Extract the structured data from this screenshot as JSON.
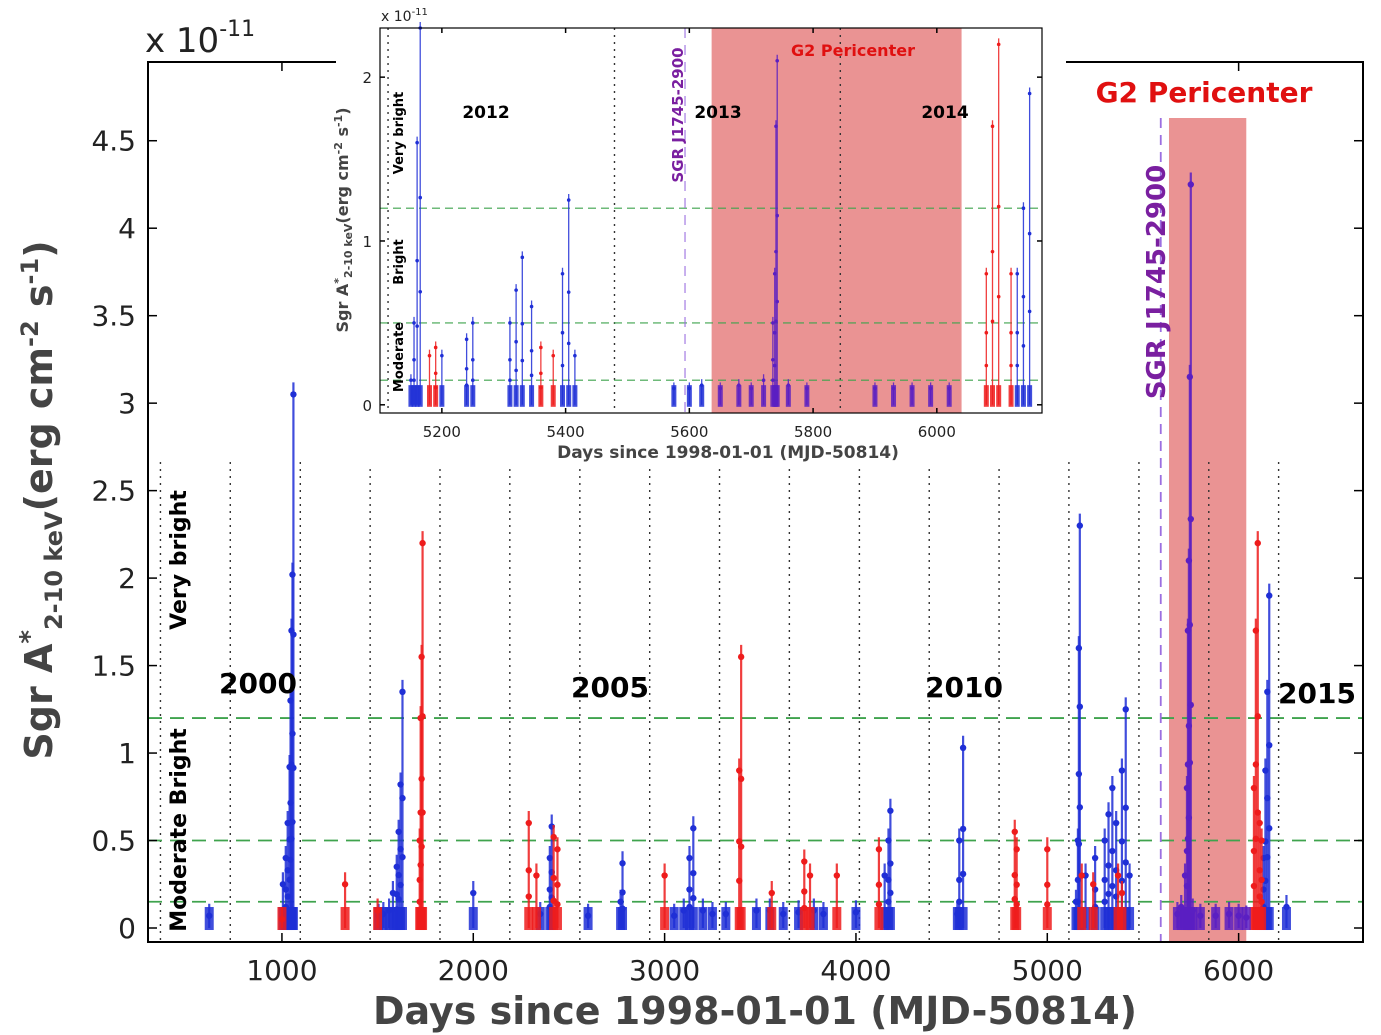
{
  "chart_data": [
    {
      "type": "scatter",
      "id": "main",
      "xlabel": "Days since 1998-01-01 (MJD-50814)",
      "ylabel_main": "Sgr A",
      "ylabel_sup": "*",
      "ylabel_sub": "2-10 keV",
      "ylabel_unit": "(erg cm",
      "ylabel_exp1": "-2",
      "ylabel_mid": " s",
      "ylabel_exp2": "-1",
      "ylabel_close": ")",
      "scale_label": "x 10",
      "scale_exp": "-11",
      "xlim": [
        300,
        6650
      ],
      "ylim": [
        -0.08,
        4.95
      ],
      "xticks": [
        1000,
        2000,
        3000,
        4000,
        5000,
        6000
      ],
      "xtick_labels": [
        "1000",
        "2000",
        "3000",
        "4000",
        "5000",
        "6000"
      ],
      "yticks": [
        0,
        0.5,
        1,
        1.5,
        2,
        2.5,
        3,
        3.5,
        4,
        4.5
      ],
      "ytick_labels": [
        "0",
        "0.5",
        "1",
        "1.5",
        "2",
        "2.5",
        "3",
        "3.5",
        "4",
        "4.5"
      ],
      "thresholds": [
        0.15,
        0.5,
        1.2
      ],
      "level_labels": [
        "Very bright",
        "Moderate Bright"
      ],
      "year_markers": [
        {
          "label": "2000",
          "x": 730
        },
        {
          "label": "2005",
          "x": 2557
        },
        {
          "label": "2010",
          "x": 4383
        },
        {
          "label": "2015",
          "x": 6209
        }
      ],
      "year_label_text": [
        "2000",
        "2005",
        "2010",
        "2015"
      ],
      "year_lines": [
        365,
        730,
        1096,
        1461,
        1826,
        2191,
        2557,
        2922,
        3287,
        3652,
        4018,
        4383,
        4748,
        5113,
        5479,
        5844,
        6209
      ],
      "sgr_label": "SGR J1745-2900",
      "sgr_day": 5593,
      "g2_label": "G2 Pericenter",
      "g2_range": [
        5636,
        6040
      ],
      "colors": {
        "blue": "#1f2fd6",
        "red": "#ee1c1c",
        "purple": "#5a1fc2",
        "g2": "#e88787",
        "threshold": "#3fa34d",
        "sgr": "#7a1fa0"
      },
      "series": [
        {
          "color": "blue",
          "clusters": [
            [
              620,
              0.07
            ],
            [
              1005,
              0.25
            ],
            [
              1020,
              0.4
            ],
            [
              1030,
              0.6
            ],
            [
              1040,
              0.92
            ],
            [
              1045,
              1.3
            ],
            [
              1050,
              1.7
            ],
            [
              1055,
              2.02
            ],
            [
              1060,
              3.05
            ],
            [
              1505,
              0.07
            ],
            [
              1530,
              0.08
            ],
            [
              1560,
              0.1
            ],
            [
              1580,
              0.2
            ],
            [
              1600,
              0.35
            ],
            [
              1610,
              0.55
            ],
            [
              1620,
              0.82
            ],
            [
              1630,
              1.35
            ],
            [
              2000,
              0.2
            ],
            [
              2350,
              0.08
            ],
            [
              2400,
              0.4
            ],
            [
              2410,
              0.58
            ],
            [
              2600,
              0.07
            ],
            [
              2770,
              0.15
            ],
            [
              2780,
              0.37
            ],
            [
              3050,
              0.07
            ],
            [
              3100,
              0.1
            ],
            [
              3130,
              0.4
            ],
            [
              3150,
              0.57
            ],
            [
              3200,
              0.1
            ],
            [
              3250,
              0.08
            ],
            [
              3320,
              0.08
            ],
            [
              3480,
              0.1
            ],
            [
              3550,
              0.1
            ],
            [
              3620,
              0.08
            ],
            [
              3700,
              0.09
            ],
            [
              3780,
              0.1
            ],
            [
              3830,
              0.08
            ],
            [
              4000,
              0.09
            ],
            [
              4150,
              0.3
            ],
            [
              4170,
              0.5
            ],
            [
              4180,
              0.67
            ],
            [
              4530,
              0.08
            ],
            [
              4540,
              0.5
            ],
            [
              4560,
              1.03
            ],
            [
              5150,
              0.15
            ],
            [
              5160,
              0.5
            ],
            [
              5165,
              1.6
            ],
            [
              5170,
              2.3
            ],
            [
              5200,
              0.3
            ],
            [
              5250,
              0.4
            ],
            [
              5300,
              0.5
            ],
            [
              5320,
              0.65
            ],
            [
              5340,
              0.8
            ],
            [
              5360,
              0.6
            ],
            [
              5390,
              0.9
            ],
            [
              5410,
              1.25
            ],
            [
              5430,
              0.3
            ],
            [
              6130,
              0.4
            ],
            [
              6140,
              0.9
            ],
            [
              6150,
              1.35
            ],
            [
              6160,
              1.9
            ],
            [
              6250,
              0.12
            ]
          ]
        },
        {
          "color": "red",
          "clusters": [
            [
              1000,
              0.05
            ],
            [
              1330,
              0.25
            ],
            [
              1500,
              0.1
            ],
            [
              1720,
              0.5
            ],
            [
              1725,
              1.2
            ],
            [
              1730,
              1.55
            ],
            [
              1735,
              2.2
            ],
            [
              2290,
              0.6
            ],
            [
              2330,
              0.3
            ],
            [
              2420,
              0.52
            ],
            [
              2440,
              0.45
            ],
            [
              3000,
              0.3
            ],
            [
              3390,
              0.9
            ],
            [
              3400,
              1.55
            ],
            [
              3560,
              0.2
            ],
            [
              3730,
              0.38
            ],
            [
              3760,
              0.3
            ],
            [
              3900,
              0.3
            ],
            [
              4120,
              0.45
            ],
            [
              4830,
              0.55
            ],
            [
              4840,
              0.45
            ],
            [
              5000,
              0.45
            ],
            [
              5180,
              0.3
            ],
            [
              5240,
              0.25
            ],
            [
              5370,
              0.3
            ],
            [
              5390,
              0.2
            ],
            [
              6080,
              0.8
            ],
            [
              6090,
              1.7
            ],
            [
              6100,
              2.2
            ],
            [
              6110,
              0.6
            ],
            [
              6120,
              0.5
            ]
          ]
        },
        {
          "color": "purple",
          "clusters": [
            [
              5680,
              0.08
            ],
            [
              5700,
              0.12
            ],
            [
              5720,
              0.3
            ],
            [
              5730,
              0.8
            ],
            [
              5735,
              1.7
            ],
            [
              5740,
              2.1
            ],
            [
              5745,
              3.15
            ],
            [
              5750,
              4.25
            ],
            [
              5760,
              0.1
            ],
            [
              5800,
              0.07
            ],
            [
              5880,
              0.07
            ],
            [
              5950,
              0.08
            ],
            [
              6000,
              0.07
            ],
            [
              6040,
              0.06
            ]
          ]
        }
      ]
    },
    {
      "type": "scatter",
      "id": "inset",
      "xlabel": "Days since 1998-01-01 (MJD-50814)",
      "ylabel_main": "Sgr A",
      "ylabel_sup": "*",
      "ylabel_sub": "2-10 keV",
      "ylabel_unit": "(erg cm",
      "ylabel_exp1": "-2",
      "ylabel_mid": " s",
      "ylabel_exp2": "-1",
      "ylabel_close": ")",
      "scale_label": "x 10",
      "scale_exp": "-11",
      "xlim": [
        5100,
        6170
      ],
      "ylim": [
        -0.05,
        2.3
      ],
      "xticks": [
        5200,
        5400,
        5600,
        5800,
        6000
      ],
      "xtick_labels": [
        "5200",
        "5400",
        "5600",
        "5800",
        "6000"
      ],
      "yticks": [
        0,
        1,
        2
      ],
      "ytick_labels": [
        "0",
        "1",
        "2"
      ],
      "thresholds": [
        0.15,
        0.5,
        1.2
      ],
      "level_labels": [
        "Very bright",
        "Bright",
        "Moderate"
      ],
      "year_markers": [
        {
          "label": "2012",
          "x": 5113
        },
        {
          "label": "2013",
          "x": 5479
        },
        {
          "label": "2014",
          "x": 5844
        }
      ],
      "year_label_text": [
        "2012",
        "2013",
        "2014"
      ],
      "year_label_pos": [
        5235,
        5695,
        5978
      ],
      "sgr_label": "SGR J1745-2900",
      "sgr_day": 5593,
      "g2_label": "G2 Pericenter",
      "g2_range": [
        5636,
        6040
      ],
      "series": [
        {
          "color": "blue",
          "clusters": [
            [
              5150,
              0.15
            ],
            [
              5155,
              0.5
            ],
            [
              5160,
              1.6
            ],
            [
              5165,
              2.3
            ],
            [
              5200,
              0.3
            ],
            [
              5240,
              0.4
            ],
            [
              5250,
              0.5
            ],
            [
              5310,
              0.5
            ],
            [
              5320,
              0.7
            ],
            [
              5330,
              0.9
            ],
            [
              5345,
              0.6
            ],
            [
              5395,
              0.8
            ],
            [
              5405,
              1.25
            ],
            [
              5415,
              0.3
            ],
            [
              5575,
              0.1
            ],
            [
              5600,
              0.1
            ],
            [
              5620,
              0.12
            ],
            [
              6130,
              0.8
            ],
            [
              6140,
              1.2
            ],
            [
              6150,
              1.9
            ]
          ]
        },
        {
          "color": "red",
          "clusters": [
            [
              5180,
              0.3
            ],
            [
              5190,
              0.35
            ],
            [
              5360,
              0.35
            ],
            [
              5380,
              0.3
            ],
            [
              6080,
              0.8
            ],
            [
              6090,
              1.7
            ],
            [
              6100,
              2.2
            ],
            [
              6120,
              0.8
            ]
          ]
        },
        {
          "color": "purple",
          "clusters": [
            [
              5650,
              0.1
            ],
            [
              5680,
              0.12
            ],
            [
              5700,
              0.1
            ],
            [
              5720,
              0.15
            ],
            [
              5735,
              0.5
            ],
            [
              5738,
              0.8
            ],
            [
              5740,
              1.7
            ],
            [
              5742,
              2.1
            ],
            [
              5760,
              0.12
            ],
            [
              5790,
              0.1
            ],
            [
              5900,
              0.1
            ],
            [
              5930,
              0.1
            ],
            [
              5960,
              0.1
            ],
            [
              5990,
              0.1
            ],
            [
              6020,
              0.1
            ]
          ]
        }
      ]
    }
  ]
}
